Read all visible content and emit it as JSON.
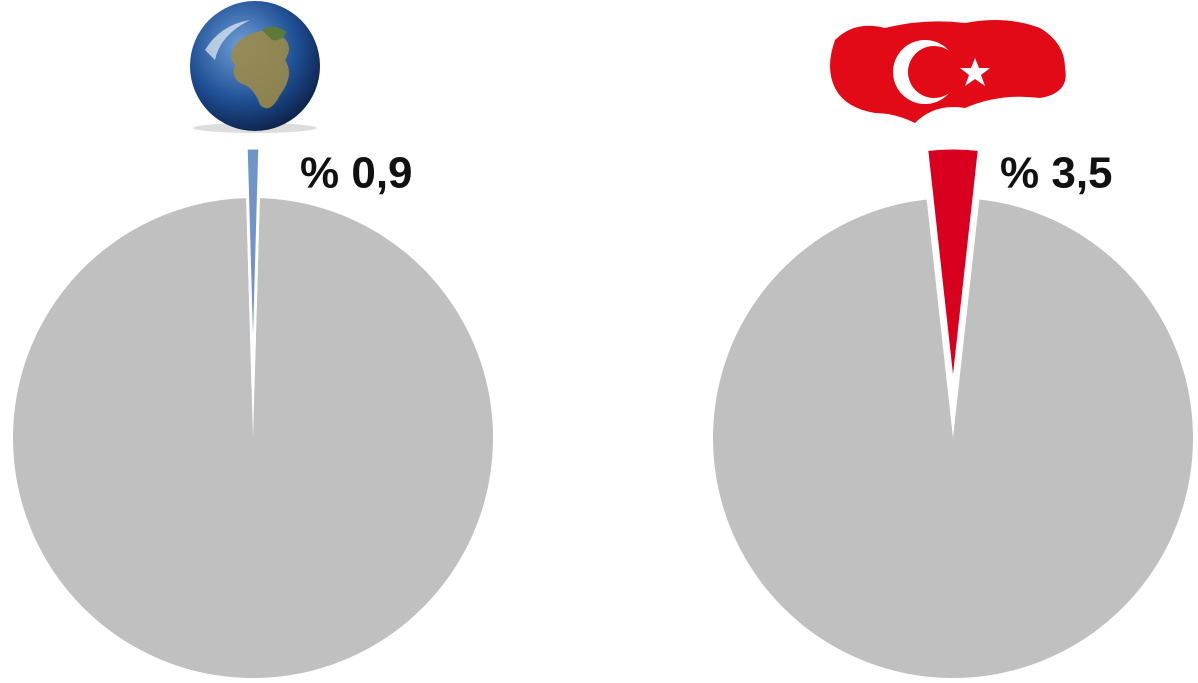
{
  "chart_data": [
    {
      "type": "pie",
      "values": [
        0.9,
        99.1
      ],
      "value_labels": [
        "% 0,9",
        null
      ],
      "colors": [
        "#7094c8",
        "#c0c0c0"
      ]
    },
    {
      "type": "pie",
      "values": [
        3.5,
        96.5
      ],
      "value_labels": [
        "% 3,5",
        null
      ],
      "colors": [
        "#d9001f",
        "#c0c0c0"
      ]
    }
  ]
}
